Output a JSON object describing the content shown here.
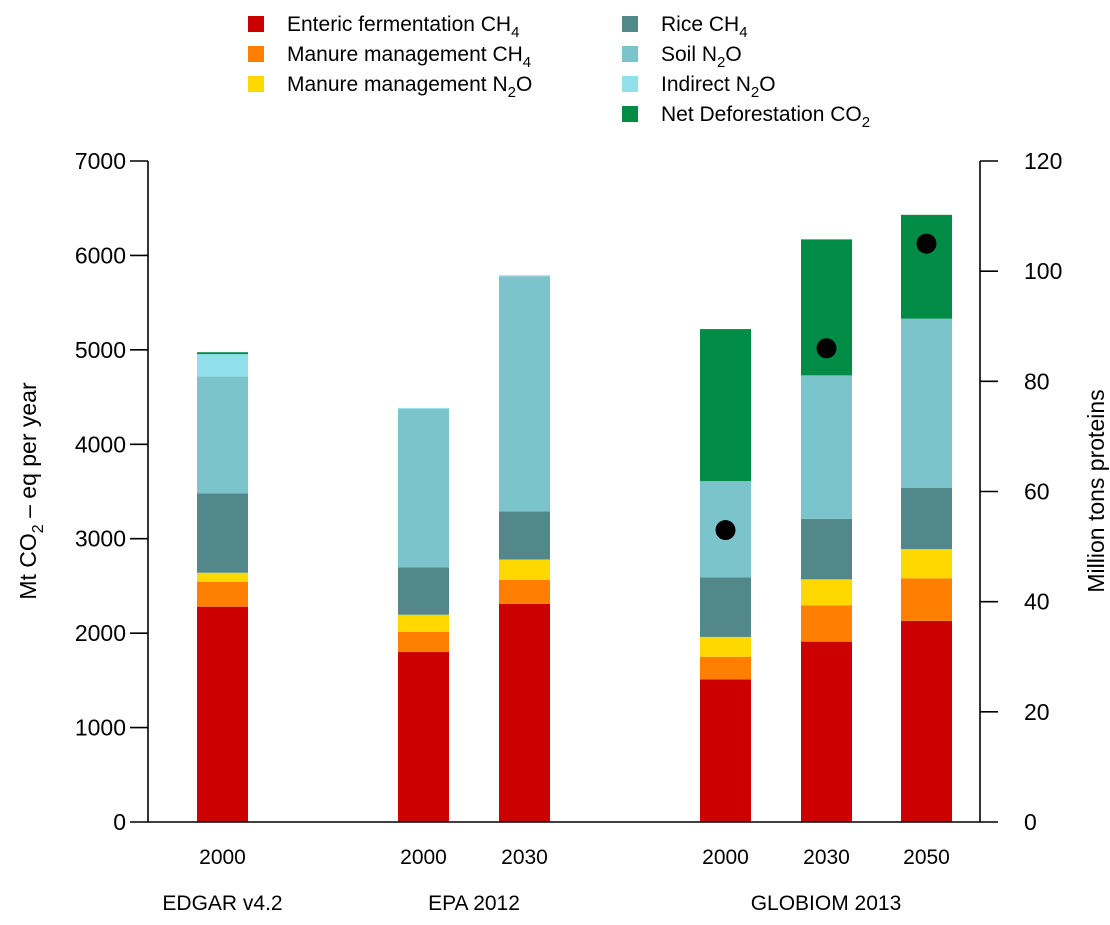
{
  "chart_data": {
    "type": "bar",
    "stacked": true,
    "grid": false,
    "legend_placement": "top",
    "y_axis_left": {
      "label_parts": [
        "Mt CO",
        "2",
        " – eq per year"
      ],
      "ylim": [
        0,
        7000
      ],
      "ticks": [
        0,
        1000,
        2000,
        3000,
        4000,
        5000,
        6000,
        7000
      ]
    },
    "y_axis_right": {
      "label": "Million tons proteins",
      "ylim": [
        0,
        120
      ],
      "ticks": [
        0,
        20,
        40,
        60,
        80,
        100,
        120
      ]
    },
    "series": [
      {
        "key": "enteric",
        "name": "Enteric fermentation CH4",
        "base": "Enteric fermentation CH",
        "sub": "4",
        "color": "#cc0000"
      },
      {
        "key": "manure_ch4",
        "name": "Manure management CH4",
        "base": "Manure management CH",
        "sub": "4",
        "color": "#ff8000"
      },
      {
        "key": "manure_n2o",
        "name": "Manure management N2O",
        "base": "Manure management N",
        "sub": "2",
        "tail": "O",
        "color": "#ffd800"
      },
      {
        "key": "rice",
        "name": "Rice CH4",
        "base": "Rice CH",
        "sub": "4",
        "color": "#52888a"
      },
      {
        "key": "soil",
        "name": "Soil N2O",
        "base": "Soil N",
        "sub": "2",
        "tail": "O",
        "color": "#7cc4cc"
      },
      {
        "key": "indirect",
        "name": "Indirect N2O",
        "base": "Indirect N",
        "sub": "2",
        "tail": "O",
        "color": "#90e0ec"
      },
      {
        "key": "deforestation",
        "name": "Net Deforestation CO2",
        "base": "Net Deforestation CO",
        "sub": "2",
        "color": "#008c44"
      }
    ],
    "groups": [
      {
        "label": "EDGAR v4.2",
        "bars": [
          0
        ]
      },
      {
        "label": "EPA 2012",
        "bars": [
          1,
          2
        ]
      },
      {
        "label": "GLOBIOM 2013",
        "bars": [
          3,
          4,
          5
        ]
      }
    ],
    "bars": [
      {
        "label": "2000",
        "values": {
          "enteric": 2280,
          "manure_ch4": 265,
          "manure_n2o": 95,
          "rice": 840,
          "soil": 1240,
          "indirect": 235,
          "deforestation": 20
        },
        "protein": null
      },
      {
        "label": "2000",
        "values": {
          "enteric": 1800,
          "manure_ch4": 215,
          "manure_n2o": 180,
          "rice": 500,
          "soil": 1680,
          "indirect": 10,
          "deforestation": 0
        },
        "protein": null
      },
      {
        "label": "2030",
        "values": {
          "enteric": 2310,
          "manure_ch4": 255,
          "manure_n2o": 215,
          "rice": 510,
          "soil": 2490,
          "indirect": 10,
          "deforestation": 0
        },
        "protein": null
      },
      {
        "label": "2000",
        "values": {
          "enteric": 1510,
          "manure_ch4": 240,
          "manure_n2o": 210,
          "rice": 630,
          "soil": 1020,
          "indirect": 0,
          "deforestation": 1610
        },
        "protein": 53
      },
      {
        "label": "2030",
        "values": {
          "enteric": 1910,
          "manure_ch4": 385,
          "manure_n2o": 275,
          "rice": 640,
          "soil": 1520,
          "indirect": 0,
          "deforestation": 1440
        },
        "protein": 86
      },
      {
        "label": "2050",
        "values": {
          "enteric": 2130,
          "manure_ch4": 450,
          "manure_n2o": 310,
          "rice": 650,
          "soil": 1790,
          "indirect": 0,
          "deforestation": 1100
        },
        "protein": 105
      }
    ]
  }
}
